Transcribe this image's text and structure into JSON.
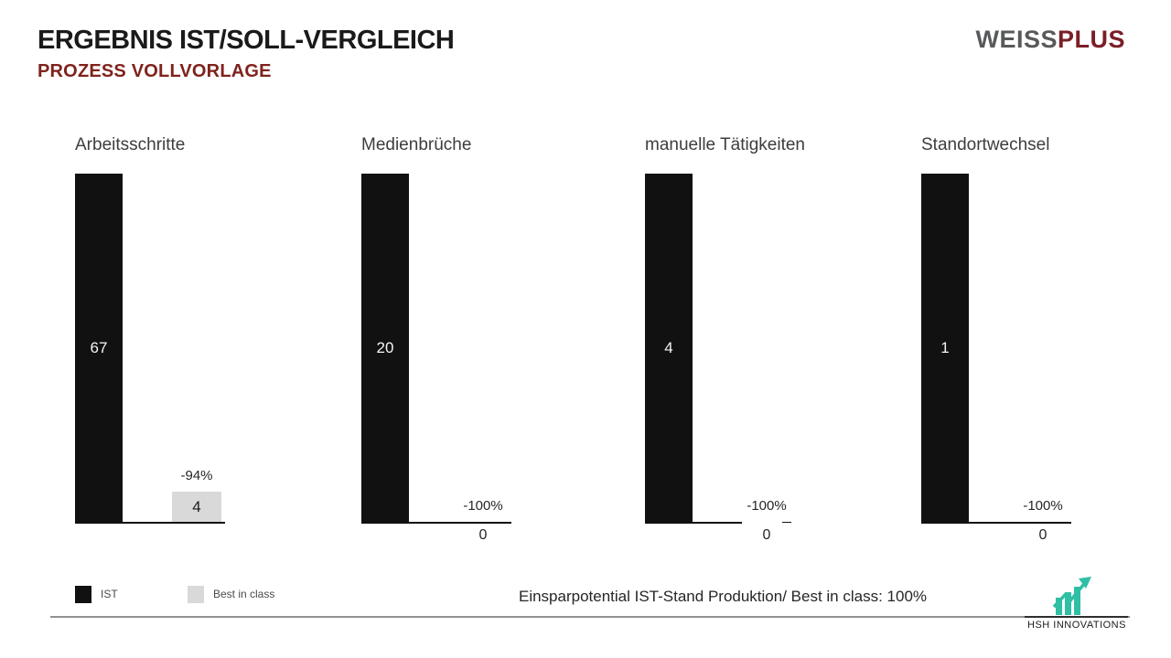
{
  "header": {
    "title": "ERGEBNIS IST/SOLL-VERGLEICH",
    "subtitle": "PROZESS VOLLVORLAGE",
    "subtitle_color": "#7f231c"
  },
  "brand": {
    "logo_part1": "WEISS",
    "logo_part2": "PLUS",
    "logo_color1": "#58595b",
    "logo_color2": "#7a1f27"
  },
  "chart_data": {
    "type": "bar",
    "categories": [
      "Arbeitsschritte",
      "Medienbrüche",
      "manuelle Tätigkeiten",
      "Standortwechsel"
    ],
    "series": [
      {
        "name": "IST",
        "color": "#111111",
        "values": [
          67,
          20,
          4,
          1
        ]
      },
      {
        "name": "Best in class",
        "color": "#d9d9d9",
        "values": [
          4,
          0,
          0,
          0
        ]
      }
    ],
    "delta_labels": [
      "-94%",
      "-100%",
      "-100%",
      "-100%"
    ],
    "normalization": "each panel scaled to its own IST value (IST bar = full height)",
    "grid": false,
    "legend_position": "bottom-left"
  },
  "legend": {
    "items": [
      {
        "label": "IST",
        "color": "#111111"
      },
      {
        "label": "Best in class",
        "color": "#d9d9d9"
      }
    ]
  },
  "footer": {
    "note": "Einsparpotential IST-Stand Produktion/ Best in class: 100%",
    "logo_text": "HSH INNOVATIONS",
    "logo_color": "#2ebfa5"
  }
}
